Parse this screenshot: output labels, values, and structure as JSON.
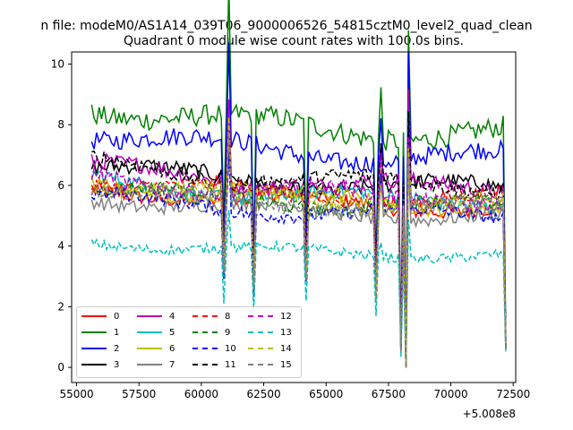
{
  "figure_suptitle": "n file: modeM0/AS1A14_039T06_9000006526_54815cztM0_level2_quad_clean",
  "chart_data": {
    "type": "line",
    "title": "Quadrant 0 module wise count rates with 100.0s bins.",
    "xlabel": "",
    "ylabel": "",
    "x_offset_label": "+5.008e8",
    "x_offset": 500800000,
    "xlim": [
      54800,
      72600
    ],
    "ylim": [
      -0.5,
      10.4
    ],
    "x_ticks": [
      55000,
      57500,
      60000,
      62500,
      65000,
      67500,
      70000,
      72500
    ],
    "y_ticks": [
      0,
      2,
      4,
      6,
      8,
      10
    ],
    "x_tick_labels": [
      "55000",
      "57500",
      "60000",
      "62500",
      "65000",
      "67500",
      "70000",
      "72500"
    ],
    "y_tick_labels": [
      "0",
      "2",
      "4",
      "6",
      "8",
      "10"
    ],
    "grid": false,
    "legend_position": "lower-left",
    "legend_columns": 4,
    "x_start": 55600,
    "x_end": 72200,
    "x_step": 100,
    "features": [
      {
        "x": 60900,
        "dip": 0.55,
        "type": "dip"
      },
      {
        "x": 61100,
        "spike": 1.5,
        "type": "spike"
      },
      {
        "x": 62100,
        "dip": 0.45,
        "type": "dip"
      },
      {
        "x": 64200,
        "dip": 0.55,
        "type": "dip"
      },
      {
        "x": 67000,
        "dip": 0.45,
        "type": "dip"
      },
      {
        "x": 67200,
        "spike": 1.25,
        "type": "spike"
      },
      {
        "x": 68000,
        "dip": 0.1,
        "type": "dip"
      },
      {
        "x": 68200,
        "dip": 0.0,
        "type": "dip"
      },
      {
        "x": 68300,
        "spike": 1.5,
        "type": "spike"
      },
      {
        "x": 72200,
        "dip": 0.12,
        "type": "dip"
      }
    ],
    "series": [
      {
        "name": "0",
        "color": "#ff0000",
        "dash": "solid",
        "base": 5.3
      },
      {
        "name": "1",
        "color": "#008000",
        "dash": "solid",
        "base": 7.7
      },
      {
        "name": "2",
        "color": "#0000ff",
        "dash": "solid",
        "base": 6.9
      },
      {
        "name": "3",
        "color": "#000000",
        "dash": "solid",
        "base": 5.9
      },
      {
        "name": "4",
        "color": "#bf00bf",
        "dash": "solid",
        "base": 5.9
      },
      {
        "name": "5",
        "color": "#00bfbf",
        "dash": "solid",
        "base": 5.5
      },
      {
        "name": "6",
        "color": "#bfbf00",
        "dash": "solid",
        "base": 5.4
      },
      {
        "name": "7",
        "color": "#808080",
        "dash": "solid",
        "base": 5.0
      },
      {
        "name": "8",
        "color": "#ff0000",
        "dash": "dashed",
        "base": 5.5
      },
      {
        "name": "9",
        "color": "#008000",
        "dash": "dashed",
        "base": 5.3
      },
      {
        "name": "10",
        "color": "#0000ff",
        "dash": "dashed",
        "base": 5.0
      },
      {
        "name": "11",
        "color": "#000000",
        "dash": "dashed",
        "base": 6.0
      },
      {
        "name": "12",
        "color": "#bf00bf",
        "dash": "dashed",
        "base": 5.6
      },
      {
        "name": "13",
        "color": "#00bfbf",
        "dash": "dashed",
        "base": 3.7
      },
      {
        "name": "14",
        "color": "#bfbf00",
        "dash": "dashed",
        "base": 5.4
      },
      {
        "name": "15",
        "color": "#808080",
        "dash": "dashed",
        "base": 5.2
      }
    ]
  }
}
